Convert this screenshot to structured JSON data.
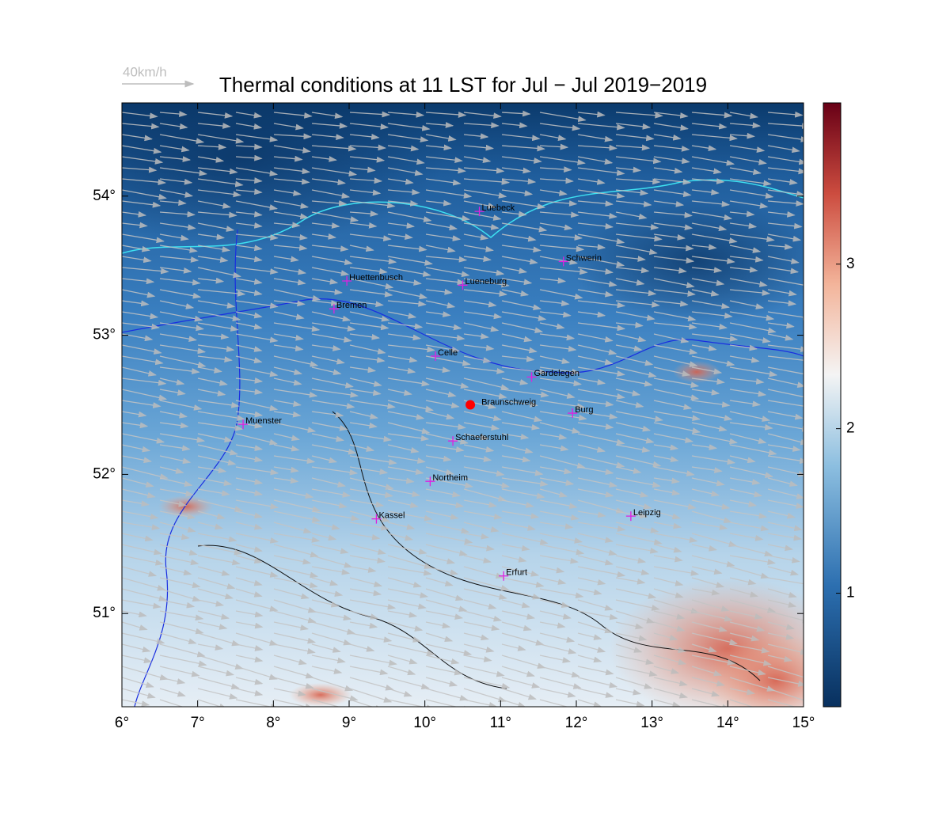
{
  "chart_data": {
    "type": "map",
    "title": "Thermal conditions at 11 LST for Jul − Jul  2019−2019",
    "wind_reference": "40km/h",
    "xlim": [
      6,
      15
    ],
    "ylim": [
      50.33,
      54.67
    ],
    "xticks": [
      {
        "value": 6,
        "label": "6°"
      },
      {
        "value": 7,
        "label": "7°"
      },
      {
        "value": 8,
        "label": "8°"
      },
      {
        "value": 9,
        "label": "9°"
      },
      {
        "value": 10,
        "label": "10°"
      },
      {
        "value": 11,
        "label": "11°"
      },
      {
        "value": 12,
        "label": "12°"
      },
      {
        "value": 13,
        "label": "13°"
      },
      {
        "value": 14,
        "label": "14°"
      },
      {
        "value": 15,
        "label": "15°"
      }
    ],
    "yticks": [
      {
        "value": 51,
        "label": "51°"
      },
      {
        "value": 52,
        "label": "52°"
      },
      {
        "value": 53,
        "label": "53°"
      },
      {
        "value": 54,
        "label": "54°"
      }
    ],
    "clim": [
      0.31,
      3.98
    ],
    "cticks": [
      1,
      2,
      3
    ],
    "stations": {
      "color": "#e020e0",
      "names": [
        "Luebeck",
        "Schwerin",
        "Huettenbusch",
        "Lueneburg",
        "Bremen",
        "Celle",
        "Gardelegen",
        "Burg",
        "Muenster",
        "Schaeferstuhl",
        "Northeim",
        "Kassel",
        "Leipzig",
        "Erfurt"
      ],
      "lon": [
        10.72,
        11.83,
        8.97,
        10.5,
        8.8,
        10.14,
        11.41,
        11.95,
        7.6,
        10.37,
        10.07,
        9.36,
        12.72,
        11.04
      ],
      "lat": [
        53.89,
        53.53,
        53.39,
        53.36,
        53.19,
        52.85,
        52.7,
        52.44,
        52.36,
        52.24,
        51.95,
        51.68,
        51.7,
        51.27
      ]
    },
    "site": {
      "name": "Braunschweig",
      "lon": 10.6,
      "lat": 52.5,
      "color": "#ff0000"
    }
  }
}
